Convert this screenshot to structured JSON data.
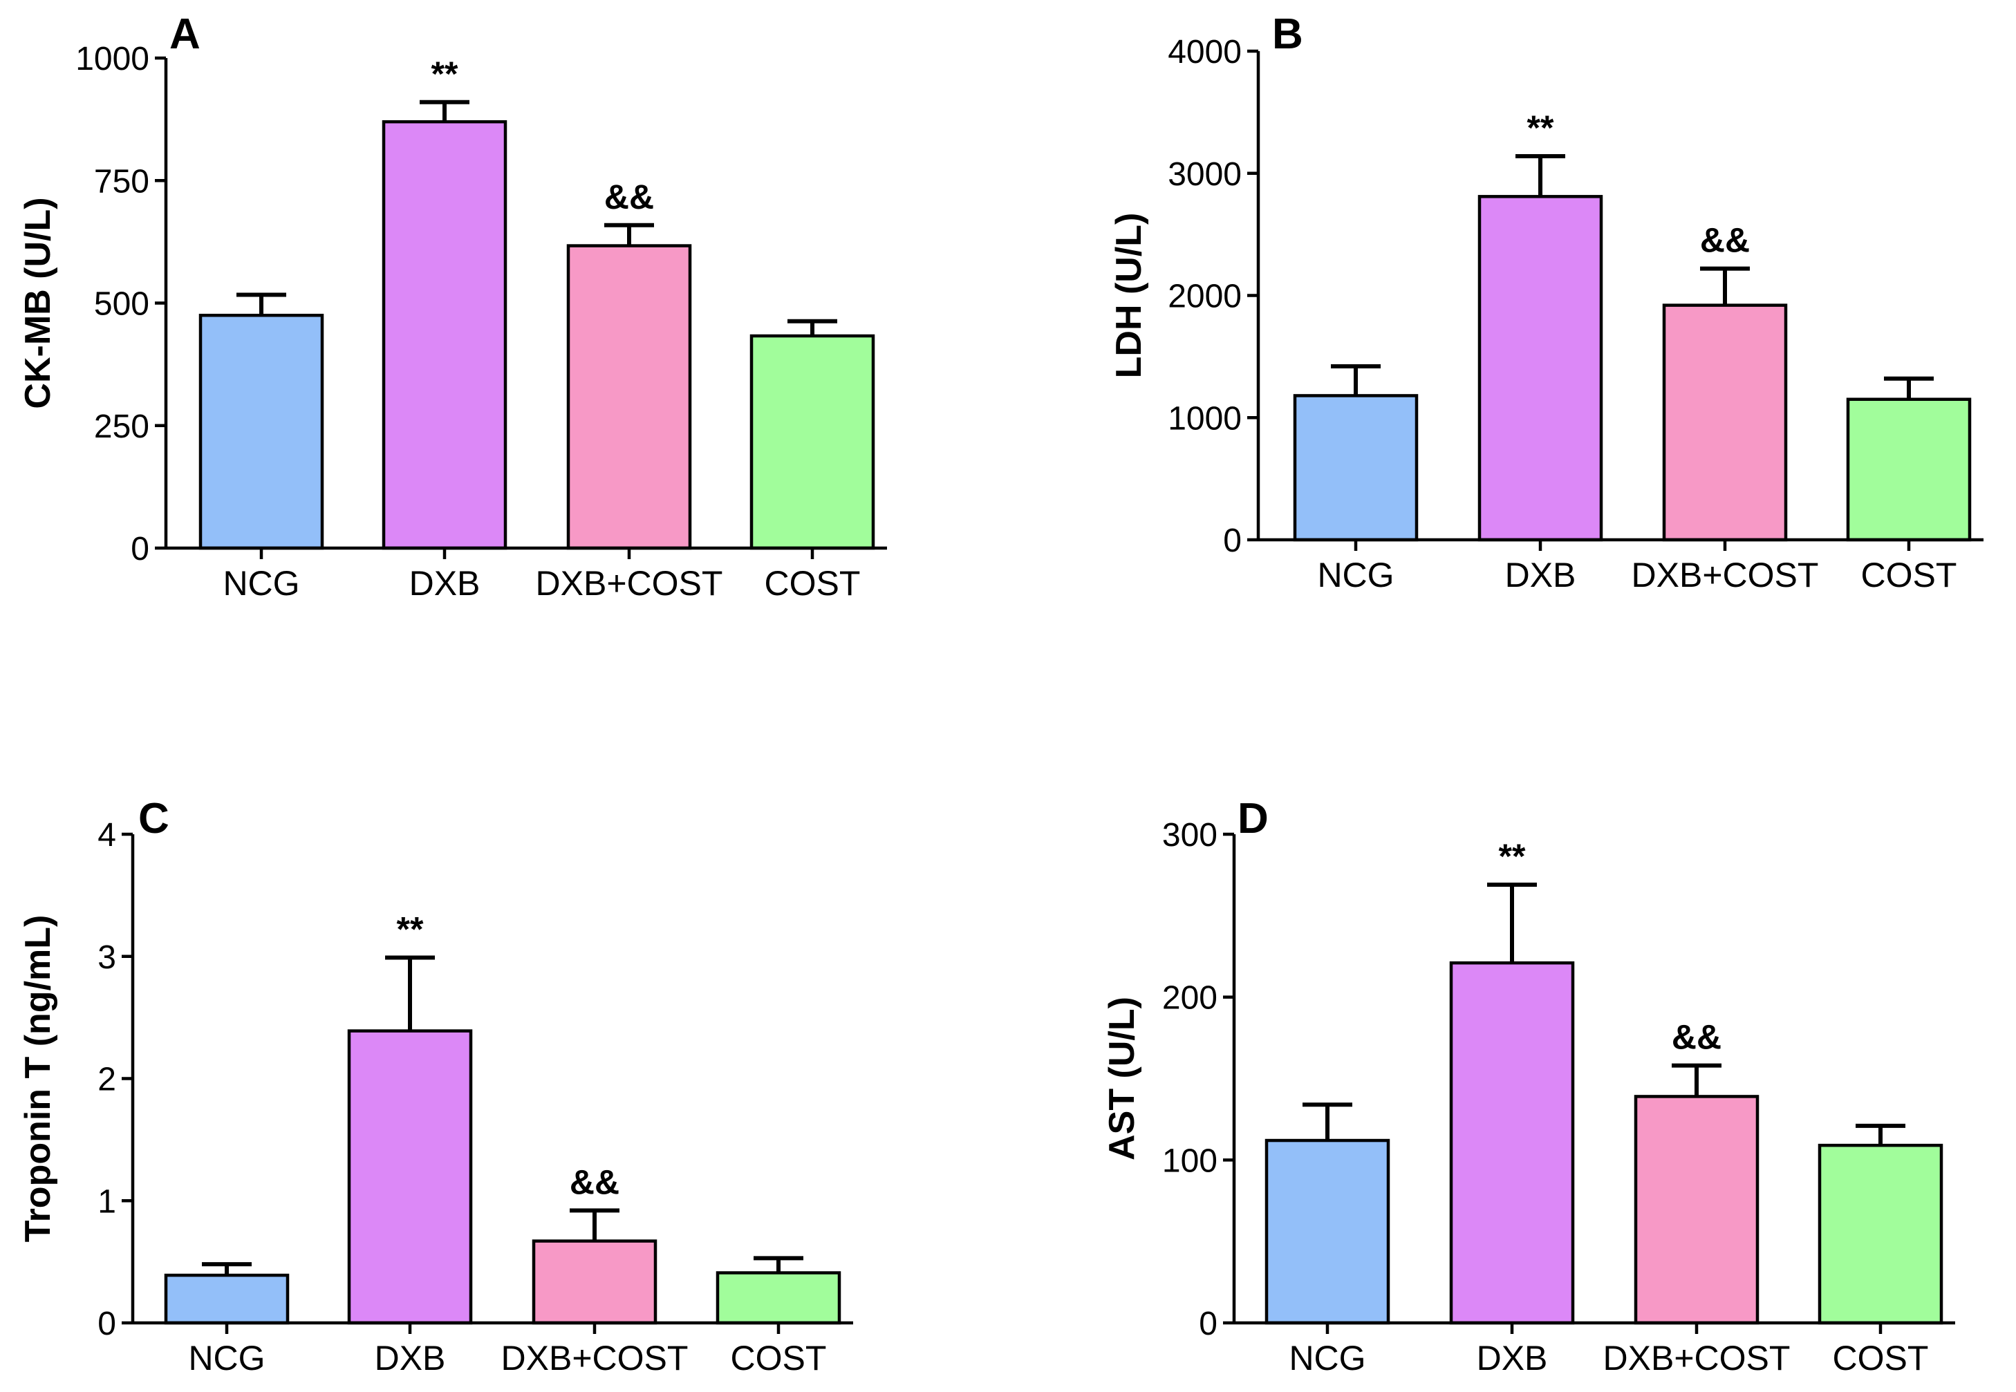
{
  "chart_data": [
    {
      "type": "bar",
      "panel_label": "A",
      "categories": [
        "NCG",
        "DXB",
        "DXB+COST",
        "COST"
      ],
      "values": [
        475,
        870,
        617,
        433
      ],
      "errors": [
        42,
        40,
        42,
        30
      ],
      "significance": [
        "",
        "**",
        "&&",
        ""
      ],
      "colors": [
        "#93bff9",
        "#dc88f7",
        "#f799c6",
        "#a1fd9b"
      ],
      "ylabel": "CK-MB (U/L)",
      "xlabel": "",
      "ylim": [
        0,
        1000
      ],
      "yticks": [
        0,
        250,
        500,
        750,
        1000
      ]
    },
    {
      "type": "bar",
      "panel_label": "B",
      "categories": [
        "NCG",
        "DXB",
        "DXB+COST",
        "COST"
      ],
      "values": [
        1180,
        2810,
        1920,
        1150
      ],
      "errors": [
        240,
        330,
        300,
        170
      ],
      "significance": [
        "",
        "**",
        "&&",
        ""
      ],
      "colors": [
        "#93bff9",
        "#dc88f7",
        "#f799c6",
        "#a1fd9b"
      ],
      "ylabel": "LDH (U/L)",
      "xlabel": "",
      "ylim": [
        0,
        4000
      ],
      "yticks": [
        0,
        1000,
        2000,
        3000,
        4000
      ]
    },
    {
      "type": "bar",
      "panel_label": "C",
      "categories": [
        "NCG",
        "DXB",
        "DXB+COST",
        "COST"
      ],
      "values": [
        0.39,
        2.39,
        0.67,
        0.41
      ],
      "errors": [
        0.09,
        0.6,
        0.25,
        0.12
      ],
      "significance": [
        "",
        "**",
        "&&",
        ""
      ],
      "colors": [
        "#93bff9",
        "#dc88f7",
        "#f799c6",
        "#a1fd9b"
      ],
      "ylabel": "Troponin T (ng/mL)",
      "xlabel": "",
      "ylim": [
        0,
        4
      ],
      "yticks": [
        0,
        1,
        2,
        3,
        4
      ]
    },
    {
      "type": "bar",
      "panel_label": "D",
      "categories": [
        "NCG",
        "DXB",
        "DXB+COST",
        "COST"
      ],
      "values": [
        112,
        221,
        139,
        109
      ],
      "errors": [
        22,
        48,
        19,
        12
      ],
      "significance": [
        "",
        "**",
        "&&",
        ""
      ],
      "colors": [
        "#93bff9",
        "#dc88f7",
        "#f799c6",
        "#a1fd9b"
      ],
      "ylabel": "AST (U/L)",
      "xlabel": "",
      "ylim": [
        0,
        300
      ],
      "yticks": [
        0,
        100,
        200,
        300
      ]
    }
  ]
}
